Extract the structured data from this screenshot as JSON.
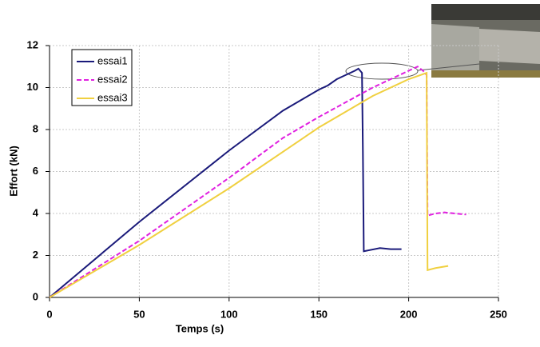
{
  "chart_data": {
    "type": "line",
    "xlabel": "Temps (s)",
    "ylabel": "Effort (kN)",
    "xlim": [
      0,
      250
    ],
    "xticks": [
      0,
      50,
      100,
      150,
      200,
      250
    ],
    "ylim": [
      0,
      12
    ],
    "yticks": [
      0,
      2,
      4,
      6,
      8,
      10,
      12
    ],
    "grid": true,
    "legend": "upper-left",
    "series": [
      {
        "name": "essai1",
        "color": "#1a1a7a",
        "dashed": false,
        "x": [
          0,
          50,
          100,
          130,
          150,
          155,
          160,
          165,
          170,
          172,
          174,
          174.5,
          175,
          178,
          184,
          190,
          196
        ],
        "values": [
          0,
          3.6,
          7.0,
          8.9,
          9.9,
          10.1,
          10.4,
          10.6,
          10.8,
          10.9,
          10.7,
          7.0,
          2.2,
          2.25,
          2.35,
          2.3,
          2.3
        ]
      },
      {
        "name": "essai2",
        "color": "#e020e0",
        "dashed": true,
        "x": [
          0,
          50,
          100,
          130,
          150,
          180,
          200,
          205,
          208,
          210,
          210.5,
          215,
          220,
          232
        ],
        "values": [
          0,
          2.7,
          5.7,
          7.6,
          8.6,
          10.0,
          10.8,
          11.0,
          10.8,
          10.6,
          3.9,
          4.0,
          4.05,
          3.95
        ]
      },
      {
        "name": "essai3",
        "color": "#f0d040",
        "dashed": false,
        "x": [
          0,
          50,
          100,
          150,
          180,
          200,
          210,
          210.5,
          215,
          222
        ],
        "values": [
          0,
          2.5,
          5.2,
          8.1,
          9.6,
          10.4,
          10.7,
          1.3,
          1.4,
          1.5
        ]
      }
    ]
  }
}
